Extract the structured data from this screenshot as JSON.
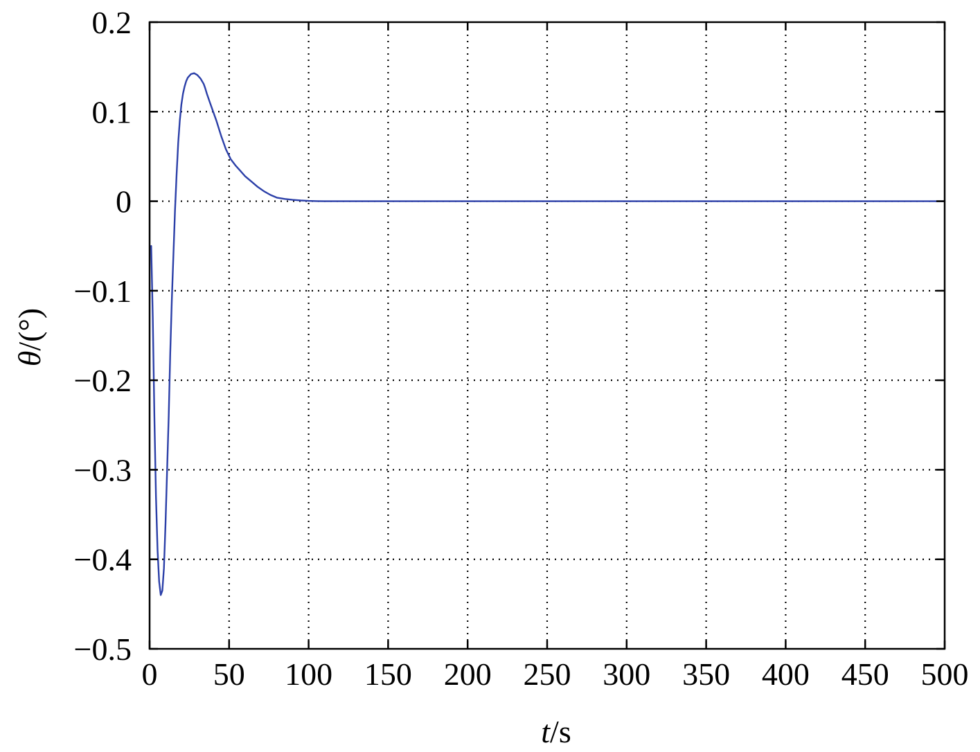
{
  "chart_data": {
    "type": "line",
    "title": "",
    "xlabel_var": "t",
    "xlabel_unit": "/s",
    "ylabel_var": "θ",
    "ylabel_unit": "/(°)",
    "xlim": [
      0,
      500
    ],
    "ylim": [
      -0.5,
      0.2
    ],
    "grid": true,
    "x_ticks": [
      0,
      50,
      100,
      150,
      200,
      250,
      300,
      350,
      400,
      450,
      500
    ],
    "x_tick_labels": [
      "0",
      "50",
      "100",
      "150",
      "200",
      "250",
      "300",
      "350",
      "400",
      "450",
      "500"
    ],
    "y_ticks": [
      0.2,
      0.1,
      0,
      -0.1,
      -0.2,
      -0.3,
      -0.4,
      -0.5
    ],
    "y_tick_labels": [
      "0.2",
      "0.1",
      "0",
      "−0.1",
      "−0.2",
      "−0.3",
      "−0.4",
      "−0.5"
    ],
    "line_color": "#2b3fa8",
    "series": [
      {
        "x": [
          1,
          2,
          3,
          4,
          5,
          6,
          7,
          8,
          9,
          10,
          11,
          12,
          13,
          14,
          15,
          16,
          17,
          18,
          19,
          20,
          21,
          22,
          23,
          24,
          25,
          26,
          28,
          30,
          32,
          34,
          35,
          36,
          38,
          40,
          42,
          45,
          48,
          51,
          54,
          57,
          60,
          64,
          68,
          72,
          76,
          80,
          85,
          90,
          95,
          100,
          105,
          110,
          150,
          200,
          250,
          300,
          350,
          400,
          450,
          500
        ],
        "values": [
          -0.05,
          -0.13,
          -0.24,
          -0.33,
          -0.39,
          -0.425,
          -0.44,
          -0.435,
          -0.41,
          -0.36,
          -0.3,
          -0.24,
          -0.17,
          -0.11,
          -0.06,
          -0.01,
          0.03,
          0.065,
          0.09,
          0.108,
          0.12,
          0.128,
          0.134,
          0.138,
          0.14,
          0.142,
          0.143,
          0.141,
          0.137,
          0.131,
          0.126,
          0.12,
          0.11,
          0.1,
          0.09,
          0.073,
          0.058,
          0.047,
          0.04,
          0.034,
          0.028,
          0.022,
          0.016,
          0.011,
          0.007,
          0.004,
          0.0025,
          0.0015,
          0.0008,
          0.0004,
          0.0001,
          0,
          0,
          0,
          0,
          0,
          0,
          0,
          0,
          0
        ]
      }
    ]
  }
}
